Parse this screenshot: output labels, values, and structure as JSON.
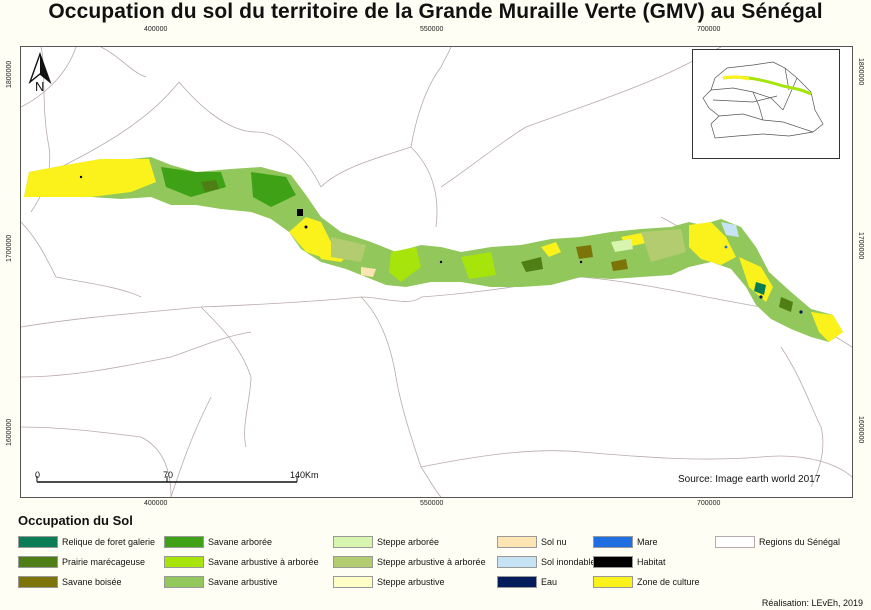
{
  "title": "Occupation du sol du territoire de la Grande Muraille Verte (GMV) au Sénégal",
  "x_ticks": [
    "400000",
    "550000",
    "700000"
  ],
  "y_ticks": [
    "1800000",
    "1700000",
    "1600000"
  ],
  "north_label": "N",
  "scale": {
    "labels": [
      "0",
      "70",
      "140"
    ],
    "unit": "Km"
  },
  "source": "Source: Image earth world 2017",
  "legend": {
    "title": "Occupation du Sol",
    "items": [
      {
        "label": "Relique de foret galerie",
        "color": "#0b7d55"
      },
      {
        "label": "Prairie marécageuse",
        "color": "#4f7d16"
      },
      {
        "label": "Savane boisée",
        "color": "#7c7409"
      },
      {
        "label": "Savane arborée",
        "color": "#3ea116"
      },
      {
        "label": "Savane arbustive à arborée",
        "color": "#a6e40c"
      },
      {
        "label": "Savane arbustive",
        "color": "#92c75c"
      },
      {
        "label": "Steppe arborée",
        "color": "#d8f5b0"
      },
      {
        "label": "Steppe arbustive à arborée",
        "color": "#b4cc70"
      },
      {
        "label": "Steppe arbustive",
        "color": "#fefec7"
      },
      {
        "label": "Sol nu",
        "color": "#fde5b3"
      },
      {
        "label": "Sol inondable",
        "color": "#c5e3f4"
      },
      {
        "label": "Eau",
        "color": "#041c5a"
      },
      {
        "label": "Mare",
        "color": "#1f6fe0"
      },
      {
        "label": "Habitat",
        "color": "#000000"
      },
      {
        "label": "Zone de culture",
        "color": "#fbf21b"
      },
      {
        "label": "Regions du Sénégal",
        "color": "#ffffff"
      }
    ]
  },
  "credit": "Réalisation: LEvEh, 2019"
}
